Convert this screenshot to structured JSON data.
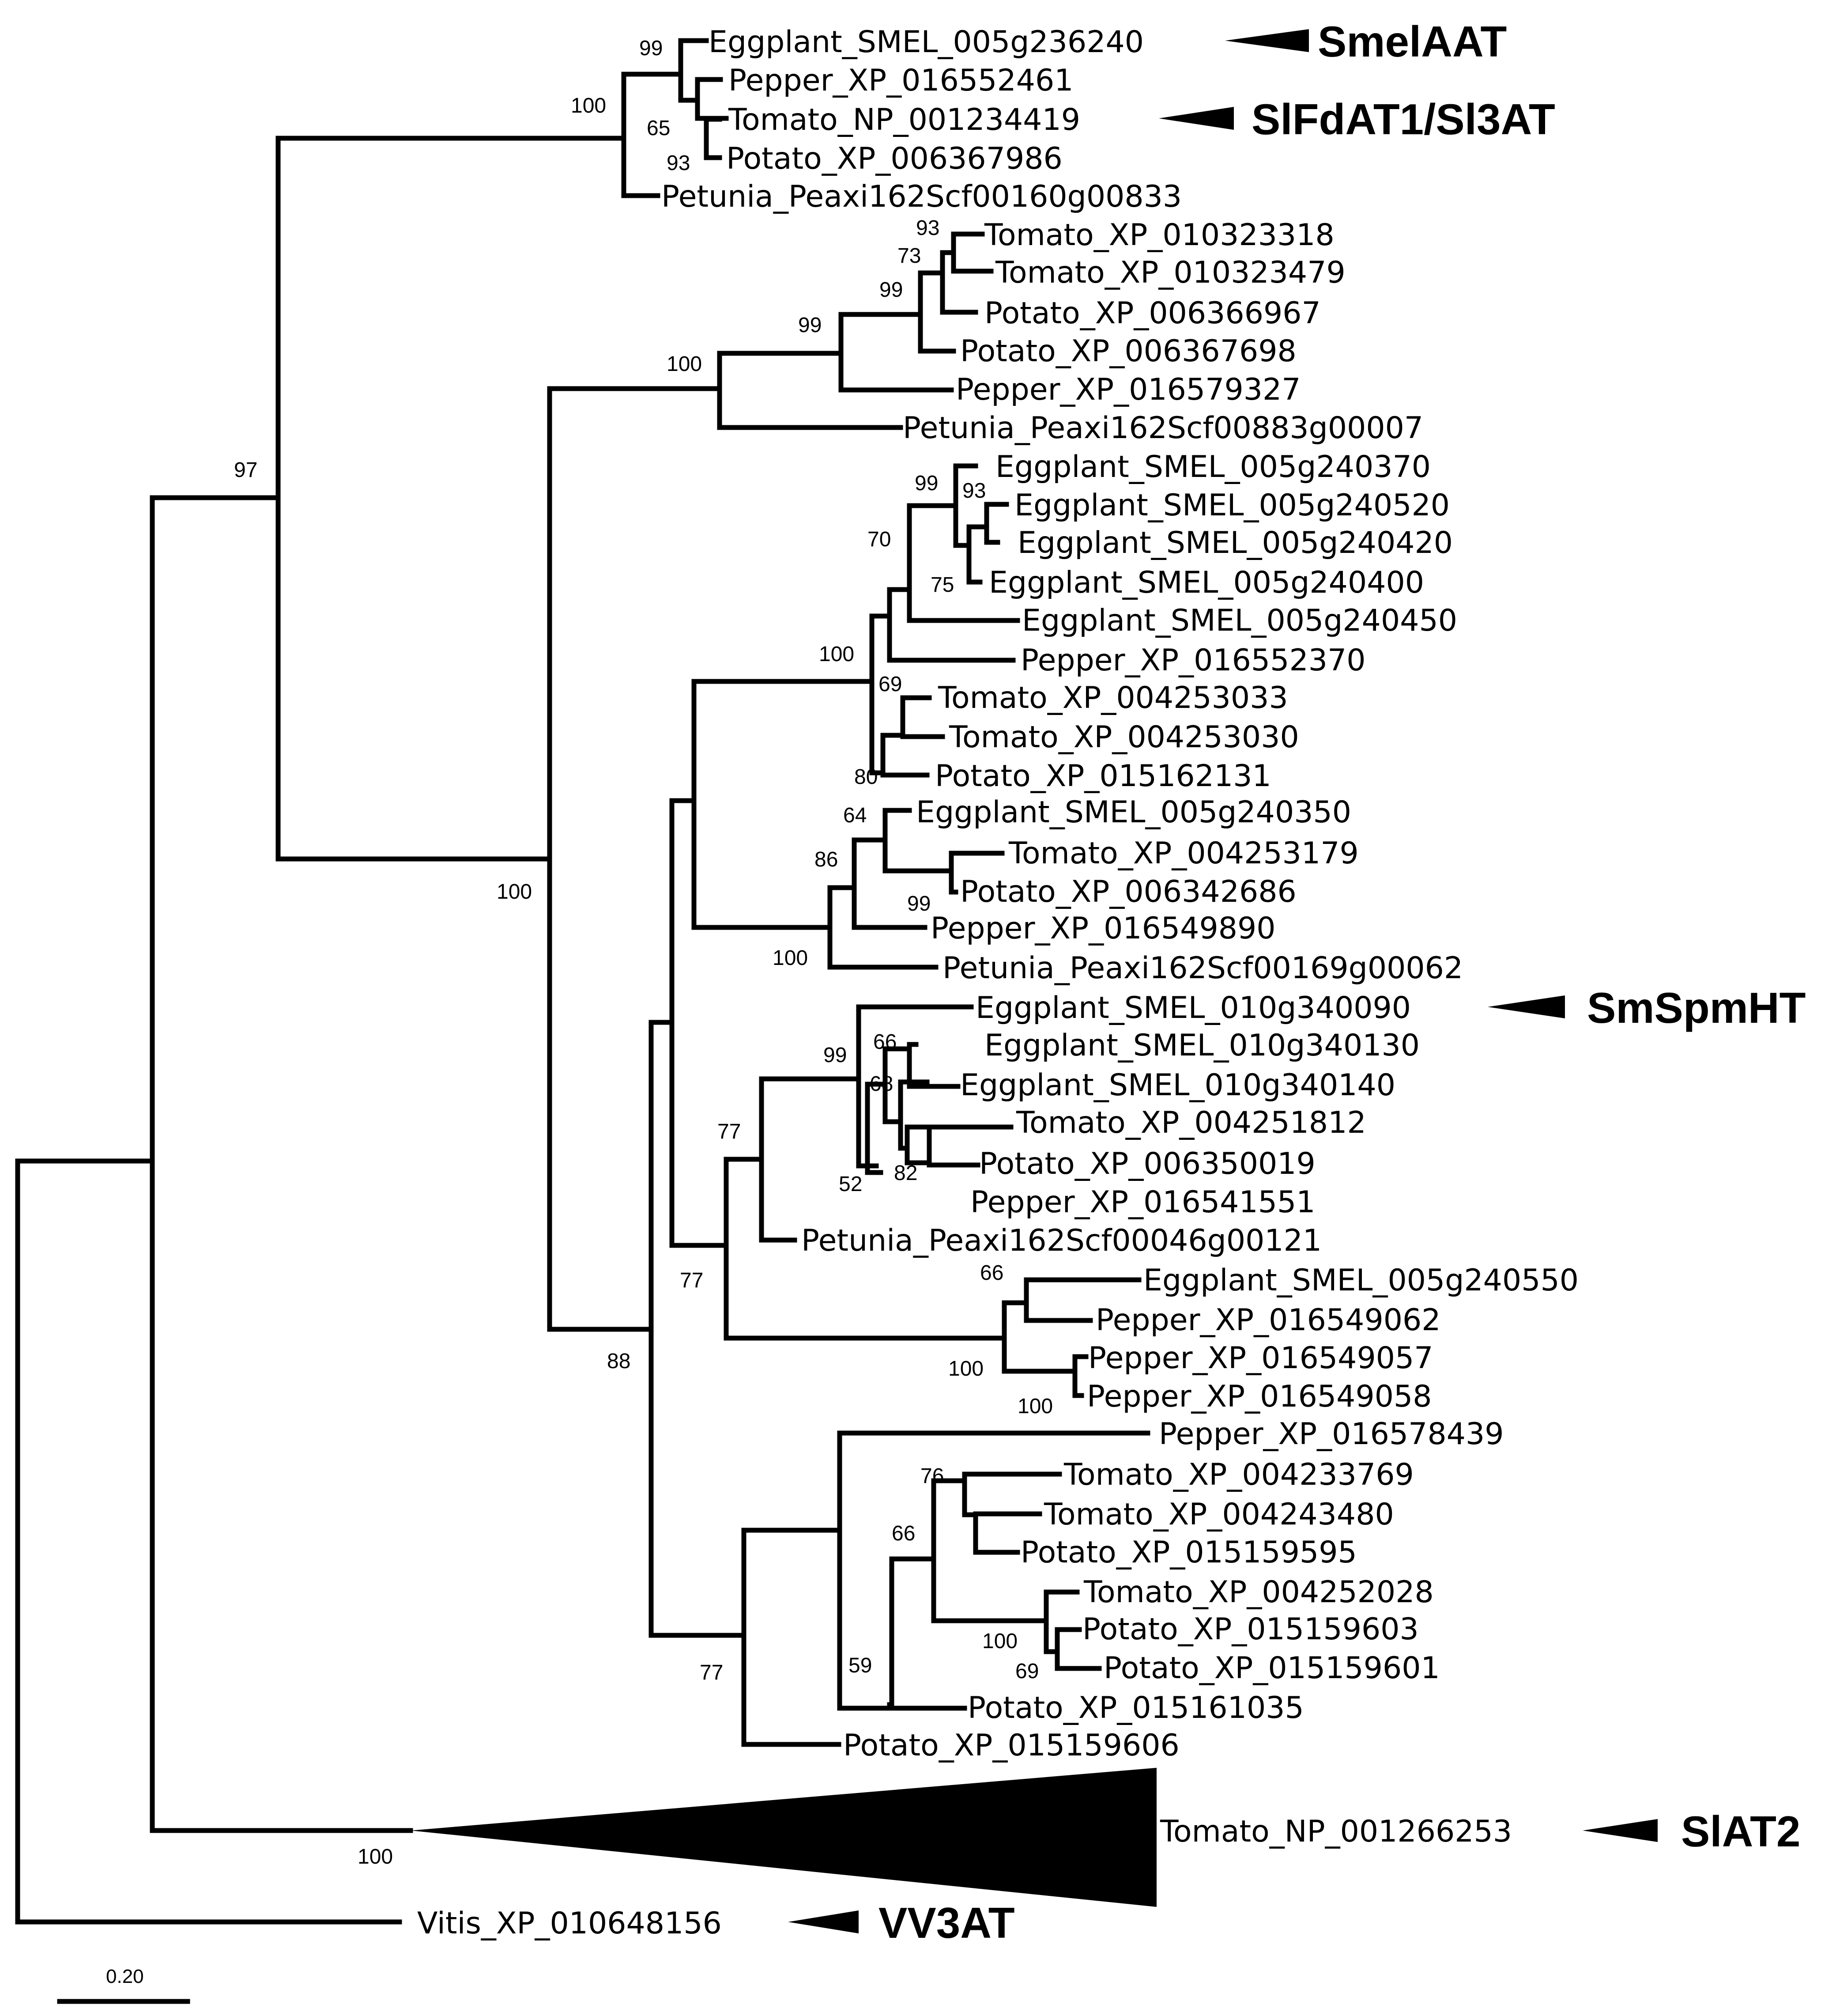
{
  "leaves": {
    "Egg_236240": "Eggplant_SMEL_005g236240",
    "Pep_552461": "Pepper_XP_016552461",
    "Tom_NP1234419": "Tomato_NP_001234419",
    "Pot_367986": "Potato_XP_006367986",
    "Pet_160": "Petunia_Peaxi162Scf00160g00833",
    "Tom_323318": "Tomato_XP_010323318",
    "Tom_323479": "Tomato_XP_010323479",
    "Pot_366967": "Potato_XP_006366967",
    "Pot_367698": "Potato_XP_006367698",
    "Pep_579327": "Pepper_XP_016579327",
    "Pet_883": "Petunia_Peaxi162Scf00883g00007",
    "Egg_240370": "Eggplant_SMEL_005g240370",
    "Egg_240520": "Eggplant_SMEL_005g240520",
    "Egg_240420": "Eggplant_SMEL_005g240420",
    "Egg_240400": "Eggplant_SMEL_005g240400",
    "Egg_240450": "Eggplant_SMEL_005g240450",
    "Pep_552370": "Pepper_XP_016552370",
    "Tom_253033": "Tomato_XP_004253033",
    "Tom_253030": "Tomato_XP_004253030",
    "Pot_162131": "Potato_XP_015162131",
    "Egg_240350": "Eggplant_SMEL_005g240350",
    "Tom_253179": "Tomato_XP_004253179",
    "Pot_342686": "Potato_XP_006342686",
    "Pep_549890": "Pepper_XP_016549890",
    "Pet_169": "Petunia_Peaxi162Scf00169g00062",
    "Egg_340090": "Eggplant_SMEL_010g340090",
    "Egg_340130": "Eggplant_SMEL_010g340130",
    "Egg_340140": "Eggplant_SMEL_010g340140",
    "Tom_251812": "Tomato_XP_004251812",
    "Pot_350019": "Potato_XP_006350019",
    "Pep_541551": "Pepper_XP_016541551",
    "Pet_46": "Petunia_Peaxi162Scf00046g00121",
    "Egg_240550": "Eggplant_SMEL_005g240550",
    "Pep_549062": "Pepper_XP_016549062",
    "Pep_549057": "Pepper_XP_016549057",
    "Pep_549058": "Pepper_XP_016549058",
    "Pep_578439": "Pepper_XP_016578439",
    "Tom_233769": "Tomato_XP_004233769",
    "Tom_243480": "Tomato_XP_004243480",
    "Pot_159595": "Potato_XP_015159595",
    "Tom_252028": "Tomato_XP_004252028",
    "Pot_159603": "Potato_XP_015159603",
    "Pot_159601": "Potato_XP_015159601",
    "Pot_161035": "Potato_XP_015161035",
    "Pot_159606": "Potato_XP_015159606",
    "Tom_NP1266253": "Tomato_NP_001266253",
    "Vitis": "Vitis_XP_010648156"
  },
  "bootstrap": {
    "n_eggsmel_top": "99",
    "n_aat_top": "100",
    "n_tomato_potato_aat": "65",
    "n_potato_aat": "93",
    "n_tom_pair1": "93",
    "n_tom_pot1": "73",
    "n_tom_pot2": "99",
    "n_group2_pep": "99",
    "n_group2": "100",
    "n_egg_group": "99",
    "n_egg_inner": "93",
    "n_egg_inner2": "75",
    "n_egg_pep": "70",
    "n_a_group": "100",
    "n_tom_pot3": "69",
    "n_tom_pot3_base": "80",
    "n_b_egg": "64",
    "n_b_tom_pot": "99",
    "n_b_group": "86",
    "n_b_root": "100",
    "n_c_egg": "99",
    "n_c_inner": "66",
    "n_c_inner2": "68",
    "n_c_inner3": "82",
    "n_c_inner4": "52",
    "n_c_root": "77",
    "n_d_egg_pep": "66",
    "n_d_pep": "100",
    "n_d_root": "100",
    "n_cd_root": "77",
    "n_e_tom": "76",
    "n_e_group": "66",
    "n_e_tom_pot": "100",
    "n_e_pot": "69",
    "n_e_base": "59",
    "n_e_root": "77",
    "n_big_root": "88",
    "n_clade2_root": "100",
    "n_solanaceae": "97",
    "n_collapsed": "100"
  },
  "clade_labels": {
    "smelaat": "SmelAAT",
    "slfdat1": "SlFdAT1/Sl3AT",
    "smspmht": "SmSpmHT",
    "slat2": "SlAT2",
    "vv3at": "VV3AT"
  },
  "scale": {
    "label": "0.20"
  },
  "colors": {
    "line": "#000000",
    "background": "#ffffff"
  }
}
